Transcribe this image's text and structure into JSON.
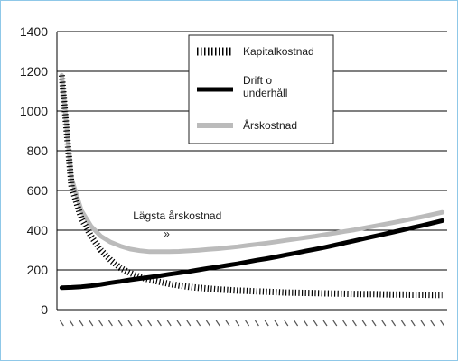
{
  "chart_data": {
    "type": "line",
    "title": "",
    "xlabel": "",
    "ylabel": "",
    "ylim": [
      0,
      1400
    ],
    "yticks": [
      0,
      200,
      400,
      600,
      800,
      1000,
      1200,
      1400
    ],
    "grid": "horizontal",
    "legend_position": "top-center",
    "x_tick_count": 40,
    "x": [
      1,
      2,
      3,
      4,
      5,
      6,
      7,
      8,
      9,
      10,
      11,
      12,
      13,
      14,
      15,
      16,
      17,
      18,
      19,
      20,
      21,
      22,
      23,
      24,
      25,
      26,
      27,
      28,
      29,
      30,
      31,
      32,
      33,
      34,
      35,
      36,
      37,
      38,
      39,
      40
    ],
    "series": [
      {
        "name": "Kapitalkostnad",
        "style": "dotted-black",
        "color": "#000000",
        "values": [
          1180,
          620,
          460,
          370,
          300,
          250,
          210,
          185,
          165,
          150,
          140,
          130,
          122,
          115,
          110,
          106,
          102,
          99,
          96,
          94,
          92,
          90,
          88,
          86,
          85,
          84,
          83,
          82,
          81,
          80,
          79,
          78,
          78,
          77,
          76,
          76,
          75,
          75,
          74,
          74
        ]
      },
      {
        "name": "Drift o underhåll",
        "style": "solid-black",
        "color": "#000000",
        "values": [
          110,
          112,
          115,
          120,
          127,
          135,
          142,
          150,
          157,
          163,
          170,
          178,
          185,
          192,
          200,
          208,
          215,
          223,
          231,
          240,
          249,
          257,
          266,
          276,
          285,
          295,
          304,
          314,
          325,
          336,
          347,
          358,
          369,
          380,
          391,
          402,
          413,
          424,
          436,
          448
        ]
      },
      {
        "name": "Årskostnad",
        "style": "solid-gray",
        "color": "#bbbbbb",
        "values": [
          1180,
          660,
          500,
          420,
          370,
          340,
          320,
          305,
          297,
          292,
          292,
          292,
          293,
          296,
          299,
          303,
          307,
          312,
          317,
          323,
          329,
          335,
          342,
          349,
          356,
          363,
          370,
          378,
          386,
          394,
          402,
          411,
          420,
          429,
          438,
          448,
          458,
          468,
          479,
          490
        ]
      }
    ],
    "annotations": [
      {
        "text": "Lägsta årskostnad",
        "marker": "»",
        "x": 12,
        "y": 292
      }
    ]
  }
}
